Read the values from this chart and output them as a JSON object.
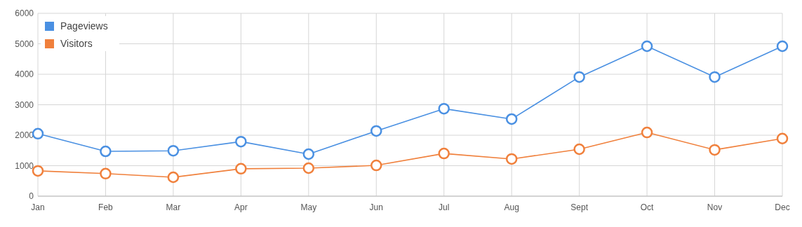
{
  "chart_data": {
    "type": "line",
    "categories": [
      "Jan",
      "Feb",
      "Mar",
      "Apr",
      "May",
      "Jun",
      "Jul",
      "Aug",
      "Sept",
      "Oct",
      "Nov",
      "Dec"
    ],
    "series": [
      {
        "name": "Pageviews",
        "color": "#4a90e2",
        "values": [
          2050,
          1470,
          1490,
          1790,
          1380,
          2140,
          2870,
          2530,
          3910,
          4920,
          3910,
          4920
        ]
      },
      {
        "name": "Visitors",
        "color": "#f0803c",
        "values": [
          830,
          740,
          620,
          900,
          920,
          1010,
          1400,
          1220,
          1540,
          2090,
          1520,
          1890
        ]
      }
    ],
    "ylim": [
      0,
      6000
    ],
    "yticks": [
      0,
      1000,
      2000,
      3000,
      4000,
      5000,
      6000
    ],
    "grid": true,
    "legend": "top left",
    "marker": "circle"
  }
}
